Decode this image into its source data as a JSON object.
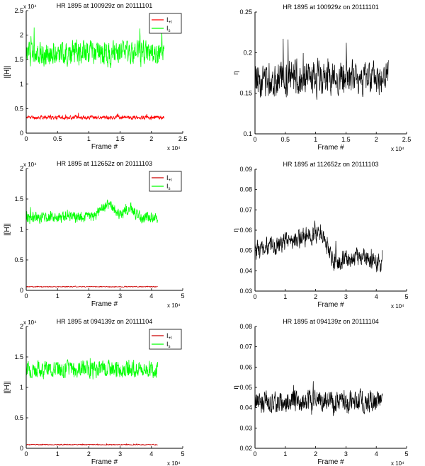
{
  "chart_data": [
    {
      "type": "line",
      "title": "HR 1895 at 100929z on 20111101",
      "xlabel": "Frame #",
      "ylabel": "|[H]|",
      "x_range": [
        0,
        2.2
      ],
      "xlim": [
        0,
        2.5
      ],
      "xticks": [
        "0",
        "0.5",
        "1",
        "1.5",
        "2",
        "2.5"
      ],
      "x_exponent": "x 10⁴",
      "ylim": [
        0,
        2.5
      ],
      "yticks": [
        "0",
        "0.5",
        "1",
        "1.5",
        "2",
        "2.5"
      ],
      "y_exponent": "x 10⁴",
      "legend": "top-right",
      "legend_entries": [
        {
          "label": "I",
          "sub": "+I"
        },
        {
          "label": "I",
          "sub": "s"
        }
      ],
      "series": [
        {
          "name": "I+I",
          "color": "#ff0000",
          "mean": 0.32,
          "amplitude": 0.06,
          "seed": 11
        },
        {
          "name": "Is",
          "color": "#00ff00",
          "mean": 1.62,
          "amplitude": 0.38,
          "seed": 12
        }
      ]
    },
    {
      "type": "line",
      "title": "HR 1895 at 100929z on 20111101",
      "xlabel": "Frame #",
      "ylabel": "η",
      "x_range": [
        0,
        2.2
      ],
      "xlim": [
        0,
        2.5
      ],
      "xticks": [
        "0",
        "0.5",
        "1",
        "1.5",
        "2",
        "2.5"
      ],
      "x_exponent": "x 10⁴",
      "ylim": [
        0.1,
        0.25
      ],
      "yticks": [
        "0.1",
        "0.15",
        "0.2",
        "0.25"
      ],
      "series": [
        {
          "name": "η",
          "color": "#000000",
          "mean": 0.168,
          "amplitude": 0.032,
          "seed": 13
        }
      ]
    },
    {
      "type": "line",
      "title": "HR 1895 at 112652z on 20111103",
      "xlabel": "Frame #",
      "ylabel": "|[H]|",
      "x_range": [
        0,
        4.2
      ],
      "xlim": [
        0,
        5
      ],
      "xticks": [
        "0",
        "1",
        "2",
        "3",
        "4",
        "5"
      ],
      "x_exponent": "x 10⁴",
      "ylim": [
        0,
        2
      ],
      "yticks": [
        "0",
        "0.5",
        "1",
        "1.5",
        "2"
      ],
      "y_exponent": "x 10⁴",
      "legend": "top-right",
      "legend_entries": [
        {
          "label": "I",
          "sub": "+I"
        },
        {
          "label": "I",
          "sub": "s"
        }
      ],
      "series": [
        {
          "name": "I+I",
          "color": "#cc0000",
          "mean": 0.06,
          "amplitude": 0.01,
          "seed": 21
        },
        {
          "name": "Is",
          "color": "#00ff00",
          "mean": 1.2,
          "amplitude": 0.14,
          "seed": 22,
          "bump": [
            [
              2.6,
              0.2,
              0.6
            ],
            [
              3.3,
              0.15,
              0.4
            ]
          ]
        }
      ]
    },
    {
      "type": "line",
      "title": "HR 1895 at 112652z on 20111103",
      "xlabel": "Frame #",
      "ylabel": "η",
      "x_range": [
        0,
        4.2
      ],
      "xlim": [
        0,
        5
      ],
      "xticks": [
        "0",
        "1",
        "2",
        "3",
        "4",
        "5"
      ],
      "x_exponent": "x 10⁴",
      "ylim": [
        0.03,
        0.09
      ],
      "yticks": [
        "0.03",
        "0.04",
        "0.05",
        "0.06",
        "0.07",
        "0.08",
        "0.09"
      ],
      "series": [
        {
          "name": "η",
          "color": "#000000",
          "mean": 0.052,
          "amplitude": 0.007,
          "seed": 23,
          "trend": [
            [
              0,
              0.05
            ],
            [
              2.2,
              0.059
            ],
            [
              2.6,
              0.044
            ],
            [
              3.3,
              0.047
            ],
            [
              4.2,
              0.044
            ]
          ]
        }
      ]
    },
    {
      "type": "line",
      "title": "HR 1895 at 094139z on 20111104",
      "xlabel": "Frame #",
      "ylabel": "|[H]|",
      "x_range": [
        0,
        4.2
      ],
      "xlim": [
        0,
        5
      ],
      "xticks": [
        "0",
        "1",
        "2",
        "3",
        "4",
        "5"
      ],
      "x_exponent": "x 10⁴",
      "ylim": [
        0,
        2
      ],
      "yticks": [
        "0",
        "0.5",
        "1",
        "1.5",
        "2"
      ],
      "y_exponent": "x 10⁴",
      "legend": "top-right",
      "legend_entries": [
        {
          "label": "I",
          "sub": "+I"
        },
        {
          "label": "I",
          "sub": "s"
        }
      ],
      "series": [
        {
          "name": "I+I",
          "color": "#cc0000",
          "mean": 0.06,
          "amplitude": 0.01,
          "seed": 31
        },
        {
          "name": "Is",
          "color": "#00ff00",
          "mean": 1.3,
          "amplitude": 0.2,
          "seed": 32
        }
      ]
    },
    {
      "type": "line",
      "title": "HR 1895 at 094139z on 20111104",
      "xlabel": "Frame #",
      "ylabel": "η",
      "x_range": [
        0,
        4.2
      ],
      "xlim": [
        0,
        5
      ],
      "xticks": [
        "0",
        "1",
        "2",
        "3",
        "4",
        "5"
      ],
      "x_exponent": "x 10⁴",
      "ylim": [
        0.02,
        0.08
      ],
      "yticks": [
        "0.02",
        "0.03",
        "0.04",
        "0.05",
        "0.06",
        "0.07",
        "0.08"
      ],
      "series": [
        {
          "name": "η",
          "color": "#000000",
          "mean": 0.043,
          "amplitude": 0.008,
          "seed": 33
        }
      ]
    }
  ]
}
